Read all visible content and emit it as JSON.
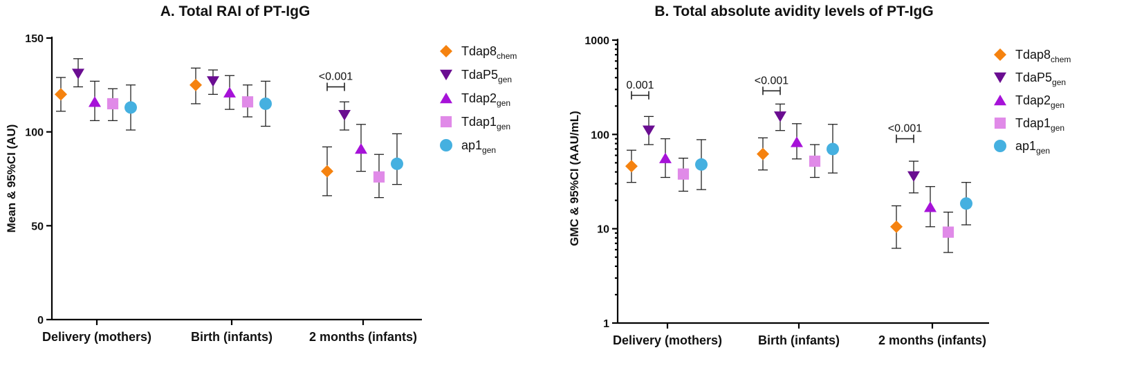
{
  "colors": {
    "Tdap8_chem": "#f5820f",
    "TdaP5_gen": "#6a0d91",
    "Tdap2_gen": "#a612d8",
    "Tdap1_gen": "#e08ae8",
    "ap1_gen": "#45b0e0"
  },
  "legend": [
    {
      "key": "Tdap8_chem",
      "base": "Tdap8",
      "sub": "chem",
      "marker": "diamond"
    },
    {
      "key": "TdaP5_gen",
      "base": "TdaP5",
      "sub": "gen",
      "marker": "triangle-down"
    },
    {
      "key": "Tdap2_gen",
      "base": "Tdap2",
      "sub": "gen",
      "marker": "triangle-up"
    },
    {
      "key": "Tdap1_gen",
      "base": "Tdap1",
      "sub": "gen",
      "marker": "square"
    },
    {
      "key": "ap1_gen",
      "base": "ap1",
      "sub": "gen",
      "marker": "circle"
    }
  ],
  "chart_data": [
    {
      "type": "scatter",
      "title": "A. Total RAI of  PT-IgG",
      "xlabel": "",
      "ylabel": "Mean & 95%CI (AU)",
      "yscale": "linear",
      "ylim": [
        0,
        150
      ],
      "yticks": [
        0,
        50,
        100,
        150
      ],
      "ytick_labels": [
        "0",
        "50",
        "100",
        "150"
      ],
      "categories": [
        "Delivery (mothers)",
        "Birth (infants)",
        "2 months (infants)"
      ],
      "series": [
        {
          "key": "Tdap8_chem",
          "values": [
            120,
            125,
            79
          ],
          "lower": [
            111,
            115,
            66
          ],
          "upper": [
            129,
            134,
            92
          ]
        },
        {
          "key": "TdaP5_gen",
          "values": [
            131,
            127,
            109
          ],
          "lower": [
            124,
            120,
            101
          ],
          "upper": [
            139,
            133,
            116
          ]
        },
        {
          "key": "Tdap2_gen",
          "values": [
            116,
            121,
            91
          ],
          "lower": [
            106,
            112,
            79
          ],
          "upper": [
            127,
            130,
            104
          ]
        },
        {
          "key": "Tdap1_gen",
          "values": [
            115,
            116,
            76
          ],
          "lower": [
            106,
            108,
            65
          ],
          "upper": [
            123,
            125,
            88
          ]
        },
        {
          "key": "ap1_gen",
          "values": [
            113,
            115,
            83
          ],
          "lower": [
            101,
            103,
            72
          ],
          "upper": [
            125,
            127,
            99
          ]
        }
      ],
      "annotations": [
        {
          "text": "<0.001",
          "category_index": 2,
          "from_series": 0,
          "to_series": 1,
          "y": 124
        }
      ],
      "legend_position": "right"
    },
    {
      "type": "scatter",
      "title": "B. Total absolute avidity levels of PT-IgG",
      "xlabel": "",
      "ylabel": "GMC & 95%CI (AAU/mL)",
      "yscale": "log",
      "ylim": [
        1,
        1000
      ],
      "yticks": [
        1,
        10,
        100,
        1000
      ],
      "ytick_labels": [
        "1",
        "10",
        "100",
        "1000"
      ],
      "categories": [
        "Delivery (mothers)",
        "Birth (infants)",
        "2 months (infants)"
      ],
      "series": [
        {
          "key": "Tdap8_chem",
          "values": [
            46,
            62,
            10.5
          ],
          "lower": [
            31,
            42,
            6.2
          ],
          "upper": [
            68,
            92,
            17.5
          ]
        },
        {
          "key": "TdaP5_gen",
          "values": [
            110,
            155,
            36
          ],
          "lower": [
            78,
            110,
            24
          ],
          "upper": [
            155,
            210,
            52
          ]
        },
        {
          "key": "Tdap2_gen",
          "values": [
            56,
            83,
            17
          ],
          "lower": [
            35,
            55,
            10.5
          ],
          "upper": [
            90,
            130,
            28
          ]
        },
        {
          "key": "Tdap1_gen",
          "values": [
            38,
            52,
            9.2
          ],
          "lower": [
            25,
            35,
            5.6
          ],
          "upper": [
            56,
            78,
            15
          ]
        },
        {
          "key": "ap1_gen",
          "values": [
            48,
            70,
            18.5
          ],
          "lower": [
            26,
            39,
            11
          ],
          "upper": [
            88,
            128,
            31
          ]
        }
      ],
      "annotations": [
        {
          "text": "0.001",
          "category_index": 0,
          "from_series": 0,
          "to_series": 1,
          "y": 260
        },
        {
          "text": "<0.001",
          "category_index": 1,
          "from_series": 0,
          "to_series": 1,
          "y": 290
        },
        {
          "text": "<0.001",
          "category_index": 2,
          "from_series": 0,
          "to_series": 1,
          "y": 90
        }
      ],
      "legend_position": "right"
    }
  ]
}
